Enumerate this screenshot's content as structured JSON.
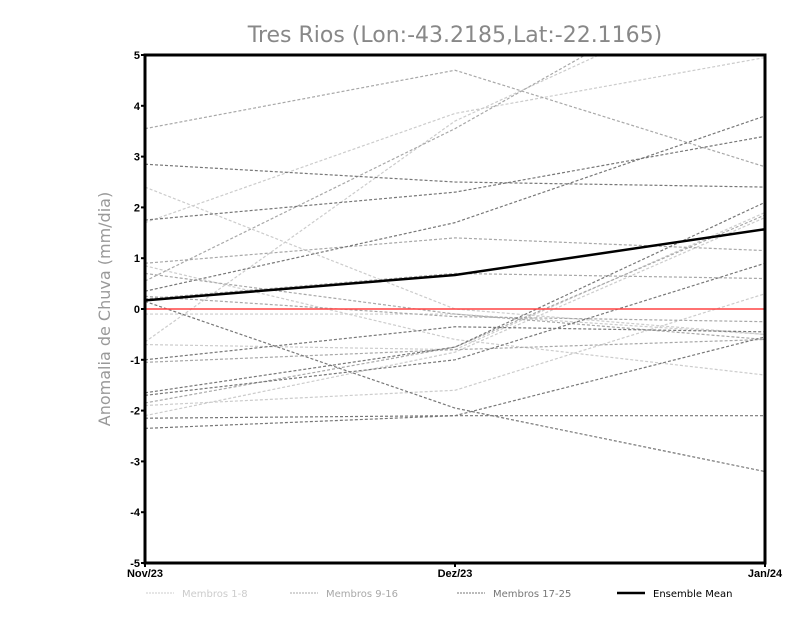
{
  "chart_data": {
    "type": "line",
    "title": "Tres Rios (Lon:-43.2185,Lat:-22.1165)",
    "xlabel": "",
    "ylabel": "Anomalia de Chuva (mm/dia)",
    "categories": [
      "Nov/23",
      "Dez/23",
      "Jan/24"
    ],
    "ylim": [
      -5,
      5
    ],
    "yticks": [
      "5",
      "4",
      "3",
      "2",
      "1",
      "0",
      "-1",
      "-2",
      "-3",
      "-4",
      "-5"
    ],
    "zero_line_color": "#ff4444",
    "legend_placement": "bottom",
    "groups": [
      {
        "name": "Membros 1-8",
        "color": "#cccccc",
        "members": [
          [
            2.4,
            0.0,
            -0.5
          ],
          [
            1.7,
            3.85,
            4.95
          ],
          [
            -0.65,
            3.7,
            6.5
          ],
          [
            0.85,
            -0.6,
            -1.3
          ],
          [
            -0.1,
            -0.1,
            -0.5
          ],
          [
            -0.7,
            -0.8,
            1.9
          ],
          [
            -1.9,
            -1.6,
            0.3
          ],
          [
            -2.1,
            -0.85,
            1.8
          ]
        ]
      },
      {
        "name": "Membros 9-16",
        "color": "#a8a8a8",
        "members": [
          [
            3.55,
            4.7,
            2.8
          ],
          [
            0.55,
            3.55,
            7.0
          ],
          [
            0.9,
            1.4,
            1.15
          ],
          [
            0.7,
            -0.1,
            -0.6
          ],
          [
            0.2,
            0.7,
            0.6
          ],
          [
            -1.85,
            -0.75,
            1.85
          ],
          [
            0.25,
            -0.15,
            -0.25
          ],
          [
            -1.05,
            -0.8,
            -0.6
          ]
        ]
      },
      {
        "name": "Membros 17-25",
        "color": "#777777",
        "members": [
          [
            2.85,
            2.5,
            2.4
          ],
          [
            1.75,
            2.3,
            3.4
          ],
          [
            0.35,
            1.7,
            3.8
          ],
          [
            0.15,
            -1.95,
            -3.2
          ],
          [
            -1.0,
            -0.35,
            -0.45
          ],
          [
            -1.65,
            -0.75,
            2.1
          ],
          [
            -1.7,
            -1.0,
            0.9
          ],
          [
            -2.15,
            -2.1,
            -2.1
          ],
          [
            -2.35,
            -2.1,
            -0.55
          ]
        ]
      }
    ],
    "ensemble_mean": {
      "name": "Ensemble Mean",
      "color": "#000000",
      "values": [
        0.17,
        0.67,
        1.57
      ]
    }
  }
}
